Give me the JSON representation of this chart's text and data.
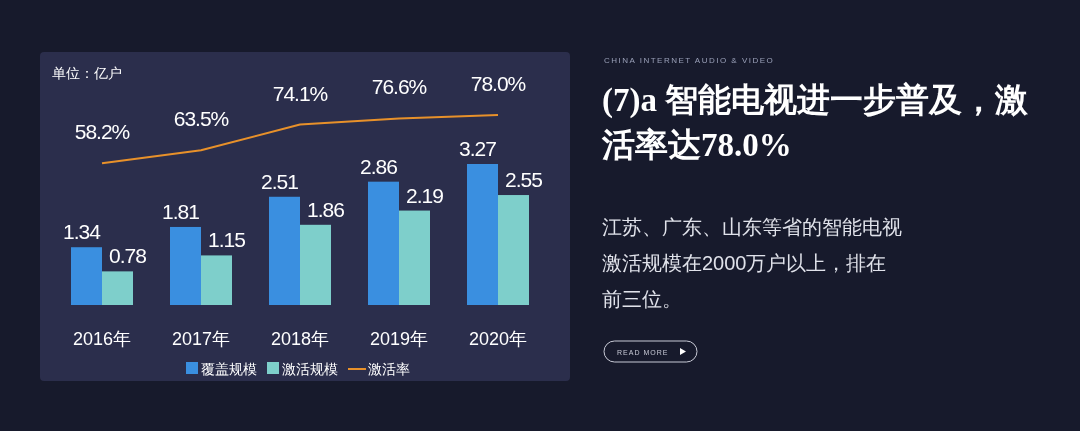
{
  "chart_data": {
    "type": "bar",
    "title": "(7)a 智能电视进一步普及，激活率达78.0%",
    "subtitle": "江苏、广东、山东等省的智能电视激活规模在2000万户以上，排在前三位。",
    "annotations": [
      "单位：亿户",
      "CHINA INTERNET AUDIO & VIDEO",
      "READ MORE"
    ],
    "categories": [
      "2016年",
      "2017年",
      "2018年",
      "2019年",
      "2020年"
    ],
    "series": [
      {
        "name": "覆盖规模",
        "color": "#3a8fe0",
        "values": [
          1.34,
          1.81,
          2.51,
          2.86,
          3.27
        ]
      },
      {
        "name": "激活规模",
        "color": "#7ecfcb",
        "values": [
          0.78,
          1.15,
          1.86,
          2.19,
          2.55
        ]
      },
      {
        "name": "激活率",
        "type": "line",
        "axis": "y2",
        "color": "#e8912a",
        "values": [
          58.2,
          63.5,
          74.1,
          76.6,
          78.0
        ],
        "value_labels": [
          "58.2%",
          "63.5%",
          "74.1%",
          "76.6%",
          "78.0%"
        ]
      }
    ],
    "data_labels": true,
    "legend": "bottom"
  }
}
